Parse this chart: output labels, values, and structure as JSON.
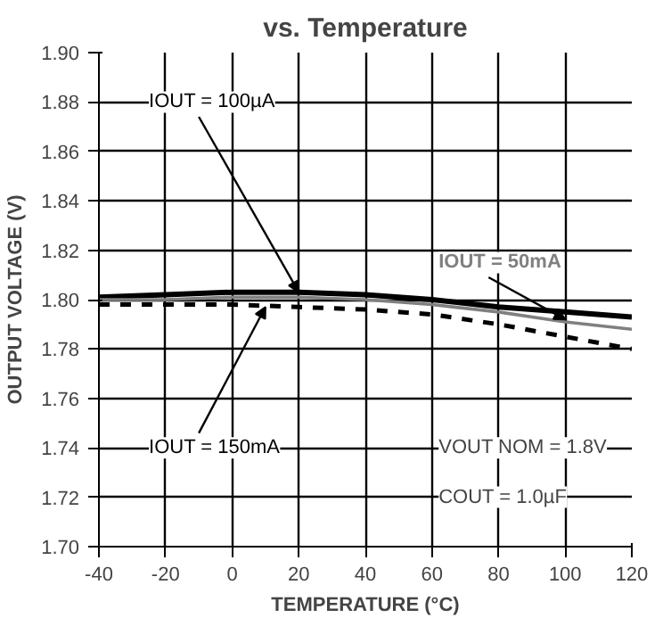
{
  "chart_data": {
    "type": "line",
    "title": "vs. Temperature",
    "xlabel": "TEMPERATURE (°C)",
    "ylabel": "OUTPUT VOLTAGE (V)",
    "x": [
      -40,
      -20,
      0,
      20,
      40,
      60,
      80,
      100,
      120
    ],
    "series": [
      {
        "name": "IOUT = 100µA",
        "color": "#000000",
        "line_style": "solid",
        "values": [
          1.801,
          1.802,
          1.803,
          1.803,
          1.802,
          1.8,
          1.797,
          1.795,
          1.793
        ]
      },
      {
        "name": "IOUT = 50mA",
        "color": "#808080",
        "line_style": "solid",
        "values": [
          1.8,
          1.8,
          1.801,
          1.801,
          1.8,
          1.798,
          1.795,
          1.791,
          1.788
        ]
      },
      {
        "name": "IOUT = 150mA",
        "color": "#000000",
        "line_style": "dashed",
        "values": [
          1.798,
          1.798,
          1.798,
          1.797,
          1.796,
          1.794,
          1.79,
          1.785,
          1.78
        ]
      }
    ],
    "annotations": [
      "VOUT NOM = 1.8V",
      "COUT = 1.0µF"
    ],
    "xlim": [
      -40,
      120
    ],
    "xticks": [
      -40,
      -20,
      0,
      20,
      40,
      60,
      80,
      100,
      120
    ],
    "ylim": [
      1.7,
      1.9
    ],
    "yticks": [
      {
        "value": 1.7,
        "label": "1.70"
      },
      1.72,
      1.74,
      1.76,
      1.78,
      {
        "value": 1.8,
        "label": "1.80"
      },
      1.82,
      1.84,
      1.86,
      1.88,
      {
        "value": 1.9,
        "label": "1.90"
      }
    ],
    "grid": true,
    "marker": "none"
  }
}
